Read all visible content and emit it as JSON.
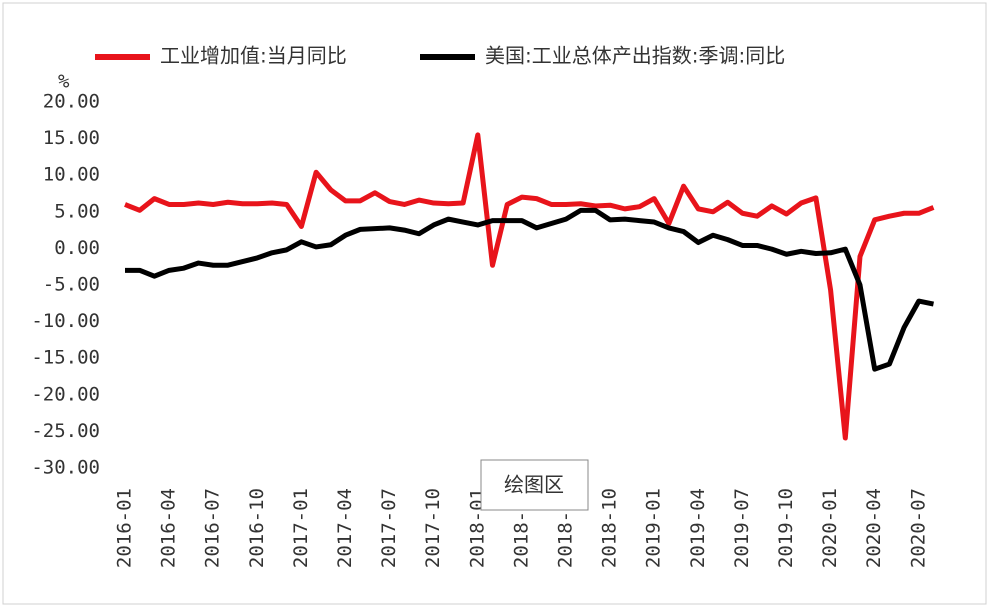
{
  "chart_data": {
    "type": "line",
    "y_label": "%",
    "annotation": "绘图区",
    "categories": [
      "2016-01",
      null,
      null,
      "2016-04",
      null,
      null,
      "2016-07",
      null,
      null,
      "2016-10",
      null,
      null,
      "2017-01",
      null,
      null,
      "2017-04",
      null,
      null,
      "2017-07",
      null,
      null,
      "2017-10",
      null,
      null,
      "2018-01",
      null,
      null,
      "2018-04",
      null,
      null,
      "2018-07",
      null,
      null,
      "2018-10",
      null,
      null,
      "2019-01",
      null,
      null,
      "2019-04",
      null,
      null,
      "2019-07",
      null,
      null,
      "2019-10",
      null,
      null,
      "2020-01",
      null,
      null,
      "2020-04",
      null,
      null,
      "2020-07",
      null
    ],
    "series": [
      {
        "name": "工业增加值:当月同比",
        "color": "#e8141b",
        "values": [
          6.0,
          5.2,
          6.8,
          6.0,
          6.0,
          6.2,
          6.0,
          6.3,
          6.1,
          6.1,
          6.2,
          6.0,
          3.0,
          10.4,
          8.0,
          6.5,
          6.5,
          7.6,
          6.4,
          6.0,
          6.6,
          6.2,
          6.1,
          6.2,
          15.5,
          -2.3,
          6.0,
          7.0,
          6.8,
          6.0,
          6.0,
          6.1,
          5.8,
          5.9,
          5.4,
          5.7,
          6.8,
          3.4,
          8.5,
          5.4,
          5.0,
          6.3,
          4.8,
          4.4,
          5.8,
          4.7,
          6.2,
          6.9,
          -5.7,
          -25.9,
          -1.1,
          3.9,
          4.4,
          4.8,
          4.8,
          5.6
        ]
      },
      {
        "name": "美国:工业总体产出指数:季调:同比",
        "color": "#000000",
        "values": [
          -3.0,
          -3.0,
          -3.8,
          -3.0,
          -2.7,
          -2.0,
          -2.3,
          -2.3,
          -1.8,
          -1.3,
          -0.6,
          -0.2,
          0.9,
          0.2,
          0.5,
          1.8,
          2.6,
          2.7,
          2.8,
          2.5,
          2.0,
          3.2,
          4.0,
          3.6,
          3.2,
          3.8,
          3.8,
          3.8,
          2.8,
          3.4,
          4.0,
          5.2,
          5.2,
          3.9,
          4.0,
          3.8,
          3.6,
          2.8,
          2.3,
          0.8,
          1.8,
          1.2,
          0.4,
          0.4,
          -0.1,
          -0.8,
          -0.4,
          -0.7,
          -0.6,
          -0.1,
          -5.0,
          -16.5,
          -15.8,
          -10.8,
          -7.2,
          -7.6
        ]
      }
    ],
    "ylim": [
      -30,
      20
    ],
    "yticks": [
      {
        "value": -30,
        "label": "-30.00"
      },
      {
        "value": -25,
        "label": "-25.00"
      },
      {
        "value": -20,
        "label": "-20.00"
      },
      {
        "value": -15,
        "label": "-15.00"
      },
      {
        "value": -10,
        "label": "-10.00"
      },
      {
        "value": -5,
        "label": "-5.00"
      },
      {
        "value": 0,
        "label": "0.00"
      },
      {
        "value": 5,
        "label": "5.00"
      },
      {
        "value": 10,
        "label": "10.00"
      },
      {
        "value": 15,
        "label": "15.00"
      },
      {
        "value": 20,
        "label": "20.00"
      }
    ],
    "grid": false,
    "legend": "top"
  }
}
